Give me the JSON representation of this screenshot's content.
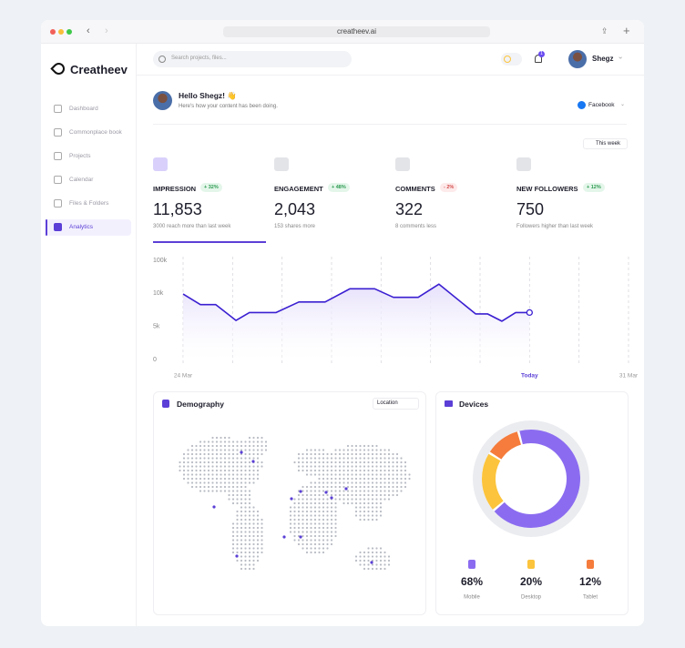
{
  "browser": {
    "url": "creatheev.ai"
  },
  "sidebar": {
    "brand": "Creatheev",
    "nav": [
      "Dashboard",
      "Commonplace book",
      "Projects",
      "Calendar",
      "Files & Folders",
      "Analytics"
    ]
  },
  "topbar": {
    "search_placeholder": "Search projects, files...",
    "notifications": "1",
    "user": "Shegz"
  },
  "greeting": {
    "title": "Hello Shegz! 👋",
    "subtitle": "Here's how your content has been doing.",
    "platform": "Facebook"
  },
  "period": "This week",
  "stats": [
    {
      "label": "IMPRESSION",
      "change": "+ 32%",
      "value": "11,853",
      "note": "3000 reach more than last week"
    },
    {
      "label": "ENGAGEMENT",
      "change": "+ 48%",
      "value": "2,043",
      "note": "153 shares more"
    },
    {
      "label": "COMMENTS",
      "change": "- 2%",
      "value": "322",
      "note": "8 comments less"
    },
    {
      "label": "NEW FOLLOWERS",
      "change": "+ 12%",
      "value": "750",
      "note": "Followers higher than last week"
    }
  ],
  "demography": {
    "title": "Demography",
    "filter": "Location"
  },
  "chart_data": [
    {
      "type": "line",
      "color": "#3a1fd1",
      "x": [
        0,
        0.35,
        0.66,
        1.07,
        1.34,
        1.88,
        2.34,
        2.87,
        3.37,
        3.87,
        4.25,
        4.75,
        5.17,
        5.91,
        6.15,
        6.44,
        6.72,
        7
      ],
      "values": [
        9900,
        8300,
        8300,
        5900,
        7100,
        7100,
        8700,
        8700,
        22500,
        22500,
        9400,
        9400,
        35000,
        6900,
        6900,
        5800,
        7100,
        7100
      ],
      "xlim": [
        0,
        9
      ],
      "xticks": [
        {
          "value": 0,
          "label": "24 Mar"
        },
        {
          "value": 7,
          "label": "Today"
        },
        {
          "value": 9,
          "label": "31 Mar"
        }
      ],
      "ylim": [
        0,
        100000
      ],
      "yticks": [
        0,
        {
          "value": 5000,
          "label": "5k"
        },
        {
          "value": 10000,
          "label": "10k"
        },
        {
          "value": 100000,
          "label": "100k"
        }
      ]
    },
    {
      "type": "pie",
      "title": "Devices",
      "categories": [
        "Mobile",
        "Desktop",
        "Tablet"
      ],
      "values": [
        68,
        20,
        12
      ],
      "value_labels": [
        "68%",
        "20%",
        "12%"
      ],
      "colors": [
        "#8b6cf0",
        "#fcc43c",
        "#f57c3c"
      ]
    }
  ]
}
